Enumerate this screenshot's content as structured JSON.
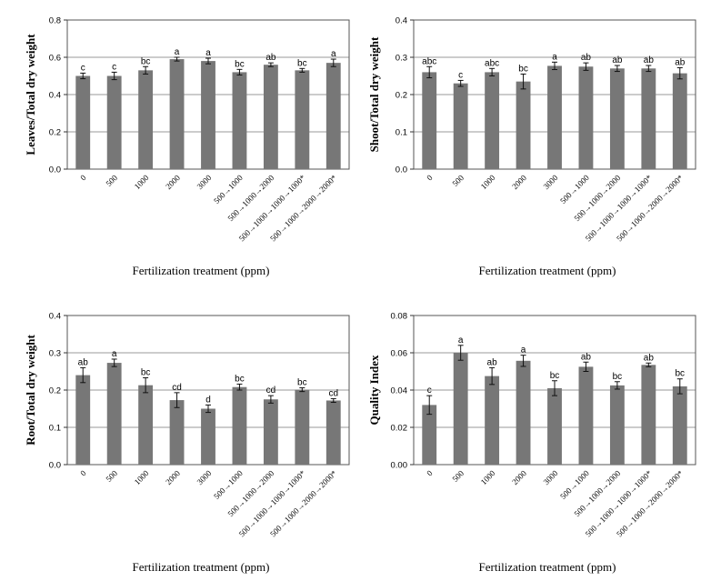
{
  "chart_data": [
    {
      "type": "bar",
      "categories": [
        "0",
        "500",
        "1000",
        "2000",
        "3000",
        "500→1000",
        "500→1000→2000",
        "500→1000→1000→1000*",
        "500→1000→2000→2000*"
      ],
      "values": [
        0.5,
        0.5,
        0.53,
        0.59,
        0.58,
        0.52,
        0.56,
        0.53,
        0.57
      ],
      "errors": [
        0.015,
        0.02,
        0.02,
        0.01,
        0.015,
        0.015,
        0.01,
        0.01,
        0.02
      ],
      "letters": [
        "c",
        "c",
        "bc",
        "a",
        "a",
        "bc",
        "ab",
        "bc",
        "a"
      ],
      "ylabel": "Leaves/Total dry weight",
      "xlabel": "Fertilization treatment (ppm)",
      "ylim": [
        0,
        0.8
      ],
      "yticks": [
        "0.0",
        "0.2",
        "0.4",
        "0.6",
        "0.8"
      ],
      "grid": true,
      "color": "#777777"
    },
    {
      "type": "bar",
      "categories": [
        "0",
        "500",
        "1000",
        "2000",
        "3000",
        "500→1000",
        "500→1000→2000",
        "500→1000→1000→1000*",
        "500→1000→2000→2000*"
      ],
      "values": [
        0.26,
        0.23,
        0.26,
        0.235,
        0.277,
        0.275,
        0.27,
        0.27,
        0.257
      ],
      "errors": [
        0.015,
        0.008,
        0.01,
        0.02,
        0.01,
        0.01,
        0.008,
        0.008,
        0.015
      ],
      "letters": [
        "abc",
        "c",
        "abc",
        "bc",
        "a",
        "ab",
        "ab",
        "ab",
        "ab"
      ],
      "ylabel": "Shoot/Total dry weight",
      "xlabel": "Fertilization treatment (ppm)",
      "ylim": [
        0,
        0.4
      ],
      "yticks": [
        "0.0",
        "0.1",
        "0.2",
        "0.3",
        "0.4"
      ],
      "grid": true,
      "color": "#777777"
    },
    {
      "type": "bar",
      "categories": [
        "0",
        "500",
        "1000",
        "2000",
        "3000",
        "500→1000",
        "500→1000→2000",
        "500→1000→1000→1000*",
        "500→1000→2000→2000*"
      ],
      "values": [
        0.24,
        0.273,
        0.213,
        0.173,
        0.15,
        0.208,
        0.175,
        0.201,
        0.172
      ],
      "errors": [
        0.02,
        0.01,
        0.02,
        0.02,
        0.01,
        0.008,
        0.01,
        0.005,
        0.005
      ],
      "letters": [
        "ab",
        "a",
        "bc",
        "cd",
        "d",
        "bc",
        "cd",
        "bc",
        "cd"
      ],
      "ylabel": "Root/Total dry weight",
      "xlabel": "Fertilization treatment (ppm)",
      "ylim": [
        0,
        0.4
      ],
      "yticks": [
        "0.0",
        "0.1",
        "0.2",
        "0.3",
        "0.4"
      ],
      "grid": true,
      "color": "#777777"
    },
    {
      "type": "bar",
      "categories": [
        "0",
        "500",
        "1000",
        "2000",
        "3000",
        "500→1000",
        "500→1000→2000",
        "500→1000→1000→1000*",
        "500→1000→2000→2000*"
      ],
      "values": [
        0.032,
        0.06,
        0.0475,
        0.0557,
        0.041,
        0.0525,
        0.0425,
        0.0535,
        0.042
      ],
      "errors": [
        0.005,
        0.004,
        0.0045,
        0.003,
        0.004,
        0.0025,
        0.002,
        0.001,
        0.004
      ],
      "letters": [
        "c",
        "a",
        "ab",
        "a",
        "bc",
        "ab",
        "bc",
        "ab",
        "bc"
      ],
      "ylabel": "Quality Index",
      "xlabel": "Fertilization treatment (ppm)",
      "ylim": [
        0,
        0.08
      ],
      "yticks": [
        "0.00",
        "0.02",
        "0.04",
        "0.06",
        "0.08"
      ],
      "grid": true,
      "color": "#777777"
    }
  ]
}
